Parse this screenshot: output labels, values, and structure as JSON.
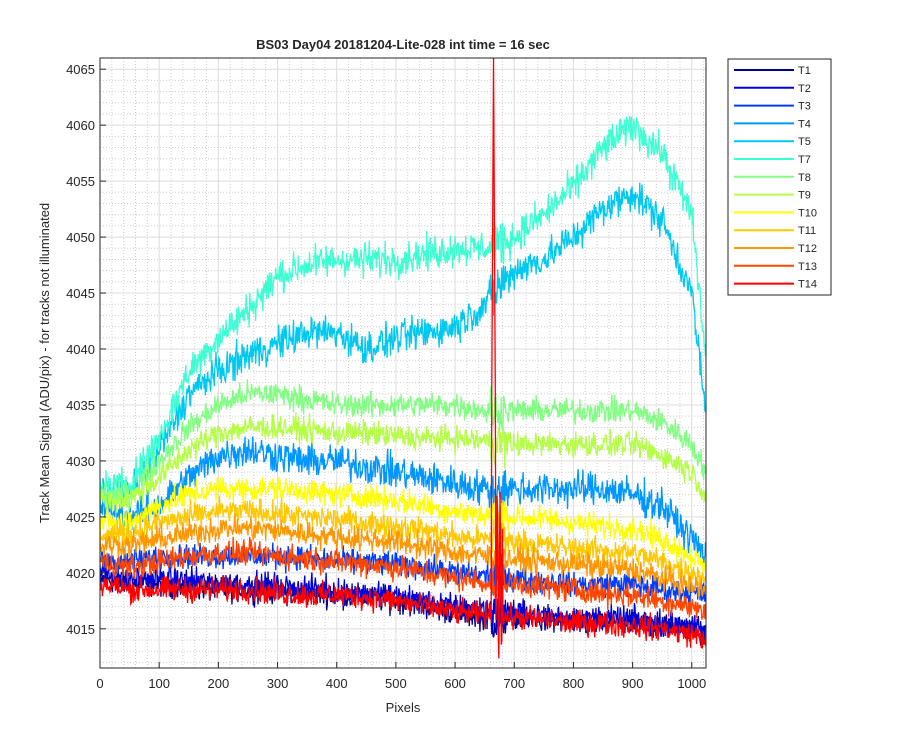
{
  "chart_data": {
    "type": "line",
    "title": "BS03 Day04 20181204-Lite-028 int time = 16 sec",
    "xlabel": "Pixels",
    "ylabel": "Track Mean Signal (ADU/pix) - for tracks not illuminated",
    "xlim": [
      0,
      1024
    ],
    "ylim": [
      4011.5,
      4066
    ],
    "xticks": [
      0,
      100,
      200,
      300,
      400,
      500,
      600,
      700,
      800,
      900,
      1000
    ],
    "yticks": [
      4015,
      4020,
      4025,
      4030,
      4035,
      4040,
      4045,
      4050,
      4055,
      4060,
      4065
    ],
    "grid": "on",
    "minor_grid": "on",
    "legend_position": "outside-top-right",
    "x": [
      0,
      50,
      100,
      150,
      200,
      250,
      300,
      350,
      400,
      450,
      500,
      550,
      600,
      650,
      700,
      750,
      800,
      850,
      900,
      950,
      1000,
      1024
    ],
    "spike": {
      "x": 665,
      "series": "T14",
      "peak": 4066
    },
    "series": [
      {
        "name": "T1",
        "color": "#00008f",
        "values": [
          4019.5,
          4019,
          4019,
          4018.8,
          4018.5,
          4018.5,
          4018.3,
          4018.2,
          4018,
          4017.8,
          4017.5,
          4017,
          4016.5,
          4016,
          4016,
          4015.8,
          4015.5,
          4015.5,
          4015.5,
          4015.2,
          4015,
          4014.5
        ]
      },
      {
        "name": "T2",
        "color": "#0000dc",
        "values": [
          4020,
          4019.5,
          4019.5,
          4019.3,
          4019,
          4019,
          4018.8,
          4018.6,
          4018.5,
          4018.2,
          4018,
          4017.5,
          4017,
          4016.8,
          4016.5,
          4016.2,
          4016,
          4016,
          4015.8,
          4015.5,
          4015.2,
          4014.8
        ]
      },
      {
        "name": "T3",
        "color": "#003cff",
        "values": [
          4021,
          4021,
          4021.5,
          4021.5,
          4021.5,
          4021.5,
          4021.5,
          4021.3,
          4021,
          4021,
          4020.8,
          4020.5,
          4020,
          4019.8,
          4019.5,
          4019.2,
          4019,
          4019,
          4019,
          4018.5,
          4018.2,
          4018
        ]
      },
      {
        "name": "T4",
        "color": "#0096ff",
        "values": [
          4026,
          4025,
          4026,
          4028.5,
          4030.5,
          4031,
          4030.5,
          4030,
          4030,
          4029.5,
          4029,
          4028.5,
          4028,
          4027.5,
          4027.5,
          4027.5,
          4027.5,
          4027.5,
          4027,
          4026,
          4023,
          4021.5
        ]
      },
      {
        "name": "T5",
        "color": "#00c8f0",
        "values": [
          4027,
          4027,
          4031,
          4036,
          4038,
          4039.5,
          4040.5,
          4041.5,
          4041.5,
          4040,
          4041,
          4041.5,
          4042,
          4044,
          4047,
          4048,
          4050,
          4052.5,
          4054,
          4051.5,
          4045,
          4034
        ]
      },
      {
        "name": "T7",
        "color": "#3cffd2",
        "values": [
          4027.5,
          4028,
          4032,
          4038,
          4041,
          4043.5,
          4046.5,
          4047.5,
          4048,
          4048,
          4048,
          4048.5,
          4049,
          4049,
          4050,
          4052,
          4054.5,
          4058,
          4060,
          4057.5,
          4052,
          4039
        ]
      },
      {
        "name": "T8",
        "color": "#82ff82",
        "values": [
          4027,
          4027,
          4030,
          4033,
          4035,
          4036,
          4036,
          4035.5,
          4035,
          4035,
          4035,
          4035,
          4035,
          4034.5,
          4034.5,
          4034.5,
          4034.5,
          4034.5,
          4034.5,
          4033.5,
          4031.5,
          4029
        ]
      },
      {
        "name": "T9",
        "color": "#b4ff46",
        "values": [
          4026.5,
          4026.5,
          4028.5,
          4031,
          4032.5,
          4033,
          4033,
          4032.8,
          4032.5,
          4032.5,
          4032.2,
          4032,
          4032,
          4031.8,
          4031.5,
          4031.5,
          4031.5,
          4031.5,
          4031.5,
          4030.5,
          4029,
          4027
        ]
      },
      {
        "name": "T10",
        "color": "#ffff00",
        "values": [
          4024.5,
          4024.5,
          4026,
          4027,
          4027.5,
          4027.5,
          4027.5,
          4027.3,
          4027,
          4026.8,
          4026.5,
          4026,
          4025.5,
          4025.2,
          4025,
          4024.8,
          4024.5,
          4024.2,
          4024,
          4023,
          4021.5,
          4020.5
        ]
      },
      {
        "name": "T11",
        "color": "#ffc800",
        "values": [
          4023.5,
          4023.5,
          4024.5,
          4025,
          4025.5,
          4025.5,
          4025.3,
          4025,
          4024.8,
          4024.5,
          4024.2,
          4023.8,
          4023.2,
          4023,
          4022.8,
          4022.5,
          4022.2,
          4022,
          4021.8,
          4021,
          4020,
          4019.5
        ]
      },
      {
        "name": "T12",
        "color": "#ff9600",
        "values": [
          4022.5,
          4022.5,
          4023,
          4023.5,
          4024,
          4024,
          4023.8,
          4023.5,
          4023.2,
          4023,
          4022.8,
          4022.3,
          4021.8,
          4021.5,
          4021.2,
          4021,
          4020.8,
          4020.5,
          4020.3,
          4019.5,
          4018.8,
          4018.5
        ]
      },
      {
        "name": "T13",
        "color": "#ff4600",
        "values": [
          4021,
          4020.5,
          4021,
          4021.5,
          4021.8,
          4021.8,
          4021.5,
          4021.3,
          4021,
          4020.8,
          4020.5,
          4020,
          4019.5,
          4019.2,
          4019,
          4018.8,
          4018.5,
          4018.2,
          4018,
          4017.5,
          4017,
          4016.5
        ]
      },
      {
        "name": "T14",
        "color": "#ff0000",
        "values": [
          4019,
          4018.5,
          4018.5,
          4018.5,
          4018.5,
          4018.5,
          4018.2,
          4018,
          4018,
          4017.8,
          4017.5,
          4017,
          4016.5,
          4016.2,
          4016,
          4015.8,
          4015.5,
          4015.5,
          4015.3,
          4015,
          4014.5,
          4014.2
        ]
      }
    ]
  }
}
